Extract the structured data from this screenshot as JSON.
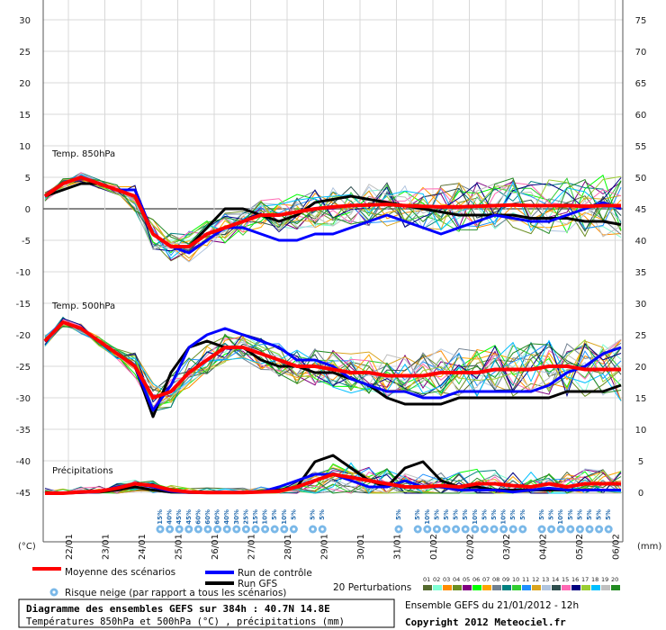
{
  "chart_data": {
    "type": "line",
    "title": "Diagramme des ensembles GEFS sur 384h : 40.7N 14.8E",
    "subtitle": "Températures 850hPa et 500hPa (°C) , précipitations (mm)",
    "left_axis": {
      "label": "(°C)",
      "ticks": [
        30,
        25,
        20,
        15,
        10,
        5,
        0,
        -5,
        -10,
        -15,
        -20,
        -25,
        -30,
        -35,
        -40,
        -45
      ],
      "range": [
        -45,
        30
      ]
    },
    "right_axis": {
      "label": "(mm)",
      "ticks": [
        75,
        70,
        65,
        60,
        55,
        50,
        45,
        40,
        35,
        30,
        25,
        20,
        15,
        10,
        5,
        0
      ],
      "range": [
        0,
        75
      ]
    },
    "x_dates": [
      "22/01",
      "23/01",
      "24/01",
      "25/01",
      "26/01",
      "27/01",
      "28/01",
      "29/01",
      "30/01",
      "31/01",
      "01/02",
      "02/02",
      "03/02",
      "04/02",
      "05/02",
      "06/02"
    ],
    "panels": [
      {
        "name": "Temp. 850hPa",
        "label": "Temp. 850hPa"
      },
      {
        "name": "Temp. 500hPa",
        "label": "Temp. 500hPa"
      },
      {
        "name": "Précipitations",
        "label": "Précipitations"
      }
    ],
    "series": [
      {
        "name": "Moyenne des scénarios",
        "color": "#ff0000",
        "role": "mean",
        "t850": [
          2,
          4,
          5,
          4,
          3,
          2,
          -4,
          -6,
          -6,
          -4,
          -3,
          -2,
          -1,
          -1,
          -0.5,
          0,
          0.3,
          0.5,
          0.6,
          0.7,
          0.5,
          0.4,
          0.3,
          0.3,
          0.4,
          0.5,
          0.6,
          0.5,
          0.5,
          0.5,
          0.4,
          0.5,
          0.5
        ],
        "t500": [
          -21,
          -18,
          -19,
          -21,
          -23,
          -25,
          -30,
          -29,
          -26,
          -24,
          -22,
          -22,
          -23,
          -24,
          -25,
          -25,
          -25.5,
          -26,
          -26,
          -26.5,
          -26.5,
          -26.5,
          -26,
          -26,
          -26,
          -25.5,
          -25.5,
          -25.5,
          -25,
          -25,
          -25.5,
          -25.5,
          -25.5
        ],
        "precip": [
          0,
          0,
          0.2,
          0.3,
          0.8,
          1.5,
          1.2,
          0.5,
          0.2,
          0.1,
          0.1,
          0.1,
          0.2,
          0.3,
          1,
          2,
          3,
          2.5,
          2,
          1.5,
          1,
          1,
          1.2,
          1,
          1.5,
          1.5,
          1.2,
          1,
          1.5,
          1,
          1.5,
          1.5,
          1.5
        ]
      },
      {
        "name": "Run de contrôle",
        "color": "#0000ff",
        "role": "control",
        "t850": [
          2,
          4,
          5,
          4,
          3,
          3,
          -4,
          -6,
          -7,
          -5,
          -3,
          -3,
          -4,
          -5,
          -5,
          -4,
          -4,
          -3,
          -2,
          -1,
          -2,
          -3,
          -4,
          -3,
          -2,
          -1,
          -1.5,
          -2,
          -2,
          -1,
          0,
          1,
          0
        ],
        "t500": [
          -21,
          -18,
          -19,
          -21,
          -23,
          -25,
          -32,
          -28,
          -22,
          -20,
          -19,
          -20,
          -21,
          -22,
          -24,
          -24,
          -25,
          -27,
          -28,
          -29,
          -29,
          -30,
          -30,
          -29,
          -29,
          -29,
          -29,
          -29,
          -28,
          -26,
          -25,
          -23,
          -22
        ],
        "precip": [
          0,
          0,
          0.1,
          0.2,
          1,
          1.5,
          1,
          0.3,
          0.1,
          0.1,
          0.1,
          0.1,
          0.2,
          1,
          2,
          3,
          3,
          2,
          1,
          1,
          2,
          1,
          1,
          0.5,
          0.5,
          0.5,
          0.2,
          0.5,
          0.8,
          0.5,
          0.5,
          0.5,
          0.5
        ]
      },
      {
        "name": "Run GFS",
        "color": "#000000",
        "role": "gfs",
        "t850": [
          2,
          3,
          4,
          4,
          3,
          3,
          -4,
          -6,
          -6,
          -3,
          0,
          0,
          -1,
          -2,
          -1,
          1,
          1.5,
          2,
          1.5,
          1,
          0.5,
          0,
          -0.5,
          -1,
          -1,
          -1,
          -1,
          -1.5,
          -1.5,
          -1.5,
          -2,
          -2,
          -2.5
        ],
        "t500": [
          -21,
          -18,
          -19,
          -21,
          -23,
          -25,
          -33,
          -26,
          -22,
          -21,
          -22,
          -22,
          -24,
          -25,
          -25,
          -26,
          -26,
          -27,
          -28,
          -30,
          -31,
          -31,
          -31,
          -30,
          -30,
          -30,
          -30,
          -30,
          -30,
          -29,
          -29,
          -29,
          -28
        ],
        "precip": [
          0,
          0,
          0.1,
          0.2,
          0.5,
          1,
          0.5,
          0.2,
          0.1,
          0.1,
          0.1,
          0.1,
          0.2,
          0.5,
          1,
          5,
          6,
          4,
          2,
          1,
          4,
          5,
          2,
          1,
          1,
          0.5,
          0.5,
          0.5,
          0.5,
          0.5,
          0.5,
          0.5,
          0.5
        ]
      }
    ],
    "perturbation_count": 20,
    "perturbation_colors": [
      "#556b2f",
      "#7fffd4",
      "#ff8c00",
      "#6b8e23",
      "#800080",
      "#00ff00",
      "#ffa500",
      "#708090",
      "#008080",
      "#32cd32",
      "#1e90ff",
      "#daa520",
      "#b0c4de",
      "#2f4f4f",
      "#ff69b4",
      "#000080",
      "#9acd32",
      "#00bfff",
      "#c0c0c0",
      "#228b22"
    ],
    "snow_risk": [
      {
        "slot": 0,
        "pct": "15%"
      },
      {
        "slot": 1,
        "pct": "40%"
      },
      {
        "slot": 2,
        "pct": "45%"
      },
      {
        "slot": 3,
        "pct": "45%"
      },
      {
        "slot": 4,
        "pct": "60%"
      },
      {
        "slot": 5,
        "pct": "60%"
      },
      {
        "slot": 6,
        "pct": "60%"
      },
      {
        "slot": 7,
        "pct": "40%"
      },
      {
        "slot": 8,
        "pct": "30%"
      },
      {
        "slot": 9,
        "pct": "25%"
      },
      {
        "slot": 10,
        "pct": "15%"
      },
      {
        "slot": 11,
        "pct": "10%"
      },
      {
        "slot": 12,
        "pct": "5%"
      },
      {
        "slot": 13,
        "pct": "10%"
      },
      {
        "slot": 14,
        "pct": "5%"
      },
      {
        "slot": 16,
        "pct": "5%"
      },
      {
        "slot": 17,
        "pct": "5%"
      },
      {
        "slot": 25,
        "pct": "5%"
      },
      {
        "slot": 27,
        "pct": "5%"
      },
      {
        "slot": 28,
        "pct": "10%"
      },
      {
        "slot": 29,
        "pct": "5%"
      },
      {
        "slot": 30,
        "pct": "5%"
      },
      {
        "slot": 31,
        "pct": "5%"
      },
      {
        "slot": 32,
        "pct": "5%"
      },
      {
        "slot": 33,
        "pct": "10%"
      },
      {
        "slot": 34,
        "pct": "5%"
      },
      {
        "slot": 35,
        "pct": "5%"
      },
      {
        "slot": 36,
        "pct": "10%"
      },
      {
        "slot": 37,
        "pct": "5%"
      },
      {
        "slot": 38,
        "pct": "5%"
      },
      {
        "slot": 40,
        "pct": "5%"
      },
      {
        "slot": 41,
        "pct": "5%"
      },
      {
        "slot": 42,
        "pct": "10%"
      },
      {
        "slot": 43,
        "pct": "5%"
      },
      {
        "slot": 44,
        "pct": "5%"
      },
      {
        "slot": 45,
        "pct": "5%"
      },
      {
        "slot": 46,
        "pct": "5%"
      },
      {
        "slot": 47,
        "pct": "5%"
      }
    ]
  },
  "legend": {
    "mean": "Moyenne des scénarios",
    "control": "Run de contrôle",
    "gfs": "Run GFS",
    "snow": "Risque neige (par rapport a tous les scénarios)",
    "perturbations": "20 Perturbations",
    "perturbation_numbers": [
      "01",
      "02",
      "03",
      "04",
      "05",
      "06",
      "07",
      "08",
      "09",
      "10",
      "11",
      "12",
      "13",
      "14",
      "15",
      "16",
      "17",
      "18",
      "19",
      "20"
    ]
  },
  "footer": {
    "title": "Diagramme des ensembles GEFS sur 384h : 40.7N 14.8E",
    "subtitle": "Températures 850hPa et 500hPa (°C) , précipitations (mm)",
    "run_info": "Ensemble GEFS du 21/01/2012 - 12h",
    "copyright": "Copyright 2012 Meteociel.fr"
  }
}
